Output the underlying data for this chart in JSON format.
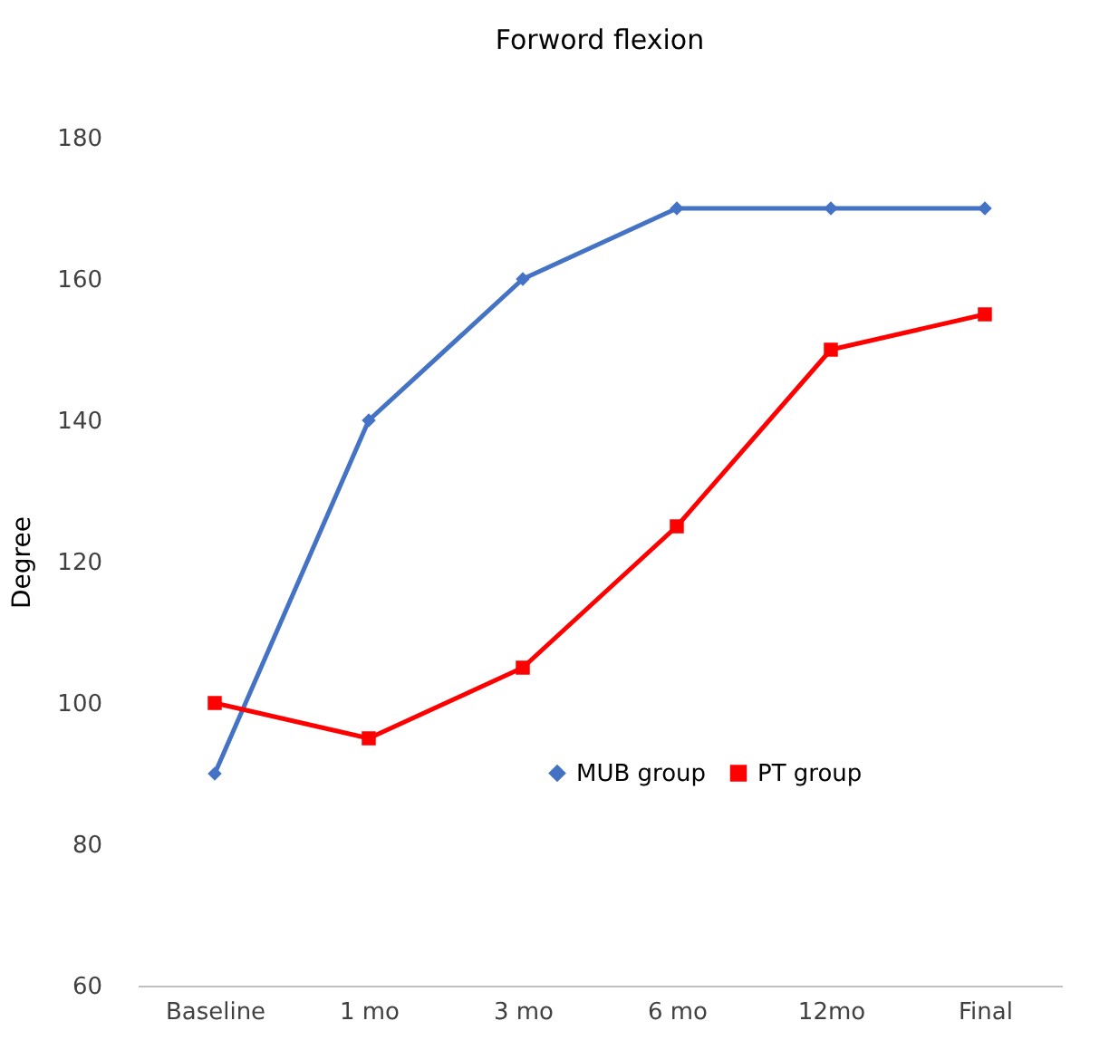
{
  "chart_data": {
    "type": "line",
    "title": "Forword flexion",
    "ylabel": "Degree",
    "categories": [
      "Baseline",
      "1 mo",
      "3 mo",
      "6 mo",
      "12mo",
      "Final"
    ],
    "series": [
      {
        "name": "MUB group",
        "color": "#4472c4",
        "marker": "diamond",
        "values": [
          90,
          140,
          160,
          170,
          170,
          170
        ]
      },
      {
        "name": "PT group",
        "color": "#ff0000",
        "marker": "square",
        "values": [
          100,
          95,
          105,
          125,
          150,
          155
        ]
      }
    ],
    "ylim": [
      60,
      180
    ],
    "yticks": [
      60,
      80,
      100,
      120,
      140,
      160,
      180
    ],
    "grid": false,
    "legend": "bottom right",
    "line_style": "solid"
  }
}
